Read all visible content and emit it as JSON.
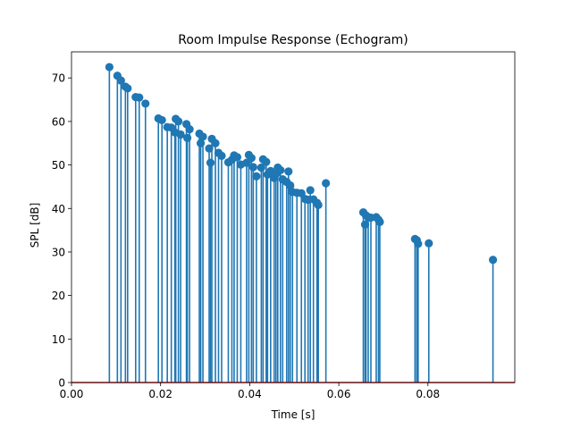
{
  "chart_data": {
    "type": "stem",
    "title": "Room Impulse Response (Echogram)",
    "xlabel": "Time [s]",
    "ylabel": "SPL [dB]",
    "xlim": [
      0.0,
      0.0995
    ],
    "ylim": [
      0,
      76
    ],
    "xticks": [
      0.0,
      0.02,
      0.04,
      0.06,
      0.08
    ],
    "xtick_labels": [
      "0.00",
      "0.02",
      "0.04",
      "0.06",
      "0.08"
    ],
    "yticks": [
      0,
      10,
      20,
      30,
      40,
      50,
      60,
      70
    ],
    "ytick_labels": [
      "0",
      "10",
      "20",
      "30",
      "40",
      "50",
      "60",
      "70"
    ],
    "grid": false,
    "colors": {
      "stem": "#1f77b4",
      "baseline": "#d62728"
    },
    "points": [
      [
        0.0085,
        72.5
      ],
      [
        0.0103,
        70.5
      ],
      [
        0.0111,
        69.4
      ],
      [
        0.0121,
        68.0
      ],
      [
        0.0126,
        67.6
      ],
      [
        0.0144,
        65.6
      ],
      [
        0.0152,
        65.5
      ],
      [
        0.0166,
        64.1
      ],
      [
        0.0195,
        60.7
      ],
      [
        0.0203,
        60.3
      ],
      [
        0.0215,
        58.7
      ],
      [
        0.0224,
        58.6
      ],
      [
        0.0232,
        57.5
      ],
      [
        0.0234,
        60.6
      ],
      [
        0.024,
        60.0
      ],
      [
        0.0245,
        57.0
      ],
      [
        0.0258,
        59.4
      ],
      [
        0.026,
        56.2
      ],
      [
        0.0265,
        58.2
      ],
      [
        0.0287,
        57.2
      ],
      [
        0.029,
        55.0
      ],
      [
        0.0295,
        56.5
      ],
      [
        0.0309,
        53.8
      ],
      [
        0.0312,
        50.5
      ],
      [
        0.0315,
        56.0
      ],
      [
        0.0323,
        55.0
      ],
      [
        0.033,
        52.8
      ],
      [
        0.0337,
        52.1
      ],
      [
        0.0352,
        50.6
      ],
      [
        0.036,
        51.2
      ],
      [
        0.0365,
        52.2
      ],
      [
        0.0372,
        51.8
      ],
      [
        0.038,
        50.1
      ],
      [
        0.0393,
        50.5
      ],
      [
        0.0398,
        52.3
      ],
      [
        0.0404,
        51.6
      ],
      [
        0.0408,
        49.5
      ],
      [
        0.0415,
        47.4
      ],
      [
        0.0426,
        49.4
      ],
      [
        0.043,
        51.3
      ],
      [
        0.0437,
        50.7
      ],
      [
        0.044,
        47.8
      ],
      [
        0.0447,
        48.6
      ],
      [
        0.0455,
        47.0
      ],
      [
        0.0459,
        47.9
      ],
      [
        0.0463,
        49.4
      ],
      [
        0.0469,
        48.8
      ],
      [
        0.0474,
        46.7
      ],
      [
        0.0483,
        46.1
      ],
      [
        0.0487,
        48.5
      ],
      [
        0.0491,
        45.3
      ],
      [
        0.0496,
        43.8
      ],
      [
        0.0506,
        43.6
      ],
      [
        0.0516,
        43.5
      ],
      [
        0.0524,
        42.2
      ],
      [
        0.0531,
        42.0
      ],
      [
        0.0536,
        44.2
      ],
      [
        0.0543,
        42.1
      ],
      [
        0.0551,
        41.3
      ],
      [
        0.0554,
        40.8
      ],
      [
        0.0571,
        45.8
      ],
      [
        0.0655,
        39.1
      ],
      [
        0.0659,
        36.3
      ],
      [
        0.0661,
        38.4
      ],
      [
        0.0666,
        38.0
      ],
      [
        0.0672,
        37.9
      ],
      [
        0.0684,
        38.0
      ],
      [
        0.0689,
        37.4
      ],
      [
        0.0692,
        36.9
      ],
      [
        0.0771,
        33.0
      ],
      [
        0.0775,
        32.7
      ],
      [
        0.0778,
        31.9
      ],
      [
        0.0802,
        32.0
      ],
      [
        0.0946,
        28.2
      ]
    ]
  }
}
